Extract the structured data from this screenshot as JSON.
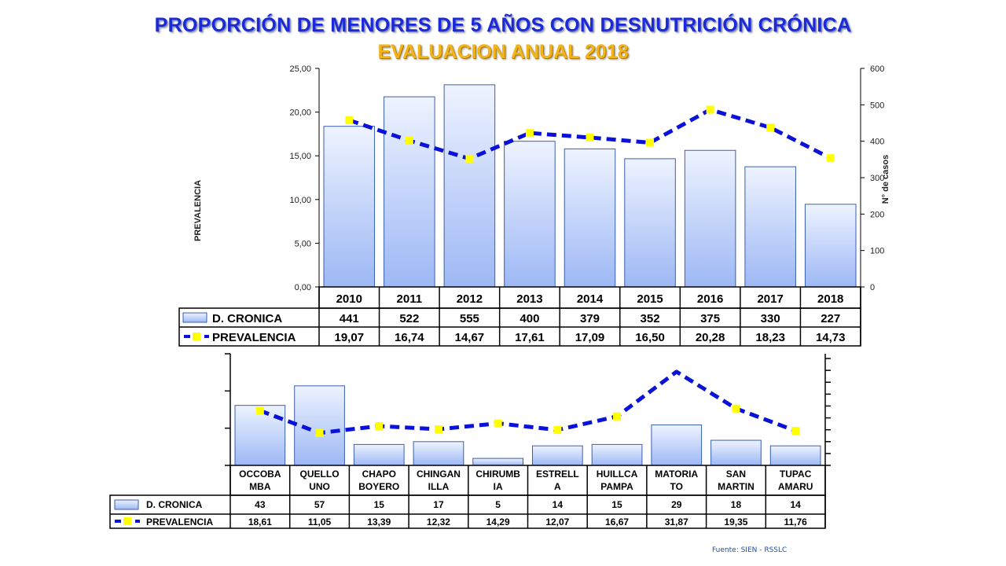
{
  "title": "PROPORCIÓN DE MENORES DE 5 AÑOS CON DESNUTRICIÓN CRÓNICA",
  "subtitle": "EVALUACION  ANUAL 2018",
  "source": "Fuente: SIEN - RSSLC",
  "colors": {
    "title": "#1a2ad8",
    "subtitle": "#f2b418",
    "bar_top": "#eef3ff",
    "bar_bottom": "#9db8f5",
    "bar_stroke": "#3a5fb0",
    "line": "#0a12d8",
    "marker": "#ffff00"
  },
  "chart_data": [
    {
      "type": "bar",
      "ylabel": "PREVALENCIA",
      "y2label": "N° de casos",
      "ylim": [
        0,
        25
      ],
      "y2lim": [
        0,
        600
      ],
      "yticks": [
        "0,00",
        "5,00",
        "10,00",
        "15,00",
        "20,00",
        "25,00"
      ],
      "y2ticks": [
        "0",
        "100",
        "200",
        "300",
        "400",
        "500",
        "600"
      ],
      "categories": [
        "2010",
        "2011",
        "2012",
        "2013",
        "2014",
        "2015",
        "2016",
        "2017",
        "2018"
      ],
      "series": [
        {
          "name": "D. CRONICA",
          "type": "bar",
          "axis": "y2",
          "values": [
            441,
            522,
            555,
            400,
            379,
            352,
            375,
            330,
            227
          ],
          "labels": [
            "441",
            "522",
            "555",
            "400",
            "379",
            "352",
            "375",
            "330",
            "227"
          ]
        },
        {
          "name": "PREVALENCIA",
          "type": "line",
          "axis": "y",
          "values": [
            19.07,
            16.74,
            14.67,
            17.61,
            17.09,
            16.5,
            20.28,
            18.23,
            14.73
          ],
          "labels": [
            "19,07",
            "16,74",
            "14,67",
            "17,61",
            "17,09",
            "16,50",
            "20,28",
            "18,23",
            "14,73"
          ]
        }
      ],
      "data_table": true,
      "grid": false
    },
    {
      "type": "bar",
      "categories": [
        [
          "OCCOBA",
          "MBA"
        ],
        [
          "QUELLO",
          "UNO"
        ],
        [
          "CHAPO",
          "BOYERO"
        ],
        [
          "CHINGAN",
          "ILLA"
        ],
        [
          "CHIRUMB",
          "IA"
        ],
        [
          "ESTRELL",
          "A"
        ],
        [
          "HUILLCA",
          "PAMPA"
        ],
        [
          "MATORIA",
          "TO"
        ],
        [
          "SAN",
          "MARTIN"
        ],
        [
          "TUPAC",
          "AMARU"
        ]
      ],
      "series": [
        {
          "name": "D. CRONICA",
          "type": "bar",
          "values": [
            43,
            57,
            15,
            17,
            5,
            14,
            15,
            29,
            18,
            14
          ],
          "labels": [
            "43",
            "57",
            "15",
            "17",
            "5",
            "14",
            "15",
            "29",
            "18",
            "14"
          ]
        },
        {
          "name": "PREVALENCIA",
          "type": "line",
          "values": [
            18.61,
            11.05,
            13.39,
            12.32,
            14.29,
            12.07,
            16.67,
            31.87,
            19.35,
            11.76
          ],
          "labels": [
            "18,61",
            "11,05",
            "13,39",
            "12,32",
            "14,29",
            "12,07",
            "16,67",
            "31,87",
            "19,35",
            "11,76"
          ]
        }
      ],
      "data_table": true,
      "grid": false
    }
  ]
}
